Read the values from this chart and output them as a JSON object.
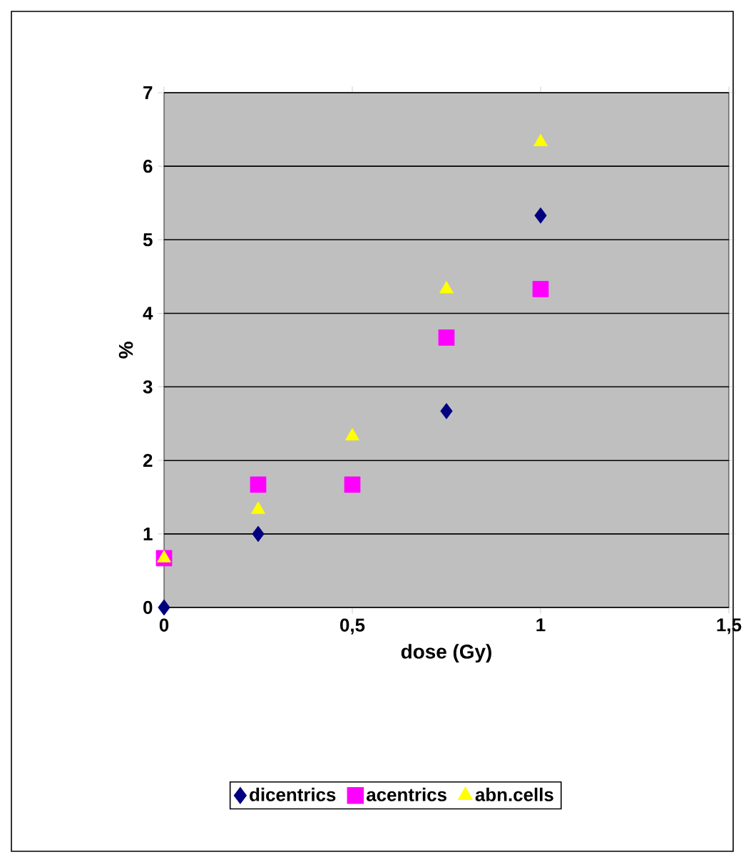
{
  "chart_data": {
    "type": "scatter",
    "xlabel": "dose (Gy)",
    "ylabel": "%",
    "xlim": [
      0,
      1.5
    ],
    "ylim": [
      0,
      7
    ],
    "xticks": [
      0,
      {
        "value": 0.5,
        "label": "0,5"
      },
      1,
      {
        "value": 1.5,
        "label": "1,5"
      }
    ],
    "yticks": [
      0,
      1,
      2,
      3,
      4,
      5,
      6,
      7
    ],
    "grid": "y",
    "legend": "bottom",
    "series": [
      {
        "name": "dicentrics",
        "color": "#000080",
        "marker": "diamond",
        "x": [
          0,
          0.25,
          0.75,
          1
        ],
        "values": [
          0,
          1,
          2.67,
          5.33
        ]
      },
      {
        "name": "acentrics",
        "color": "#ff00ff",
        "marker": "square",
        "x": [
          0,
          0.25,
          0.5,
          0.75,
          1
        ],
        "values": [
          0.67,
          1.67,
          1.67,
          3.67,
          4.33
        ]
      },
      {
        "name": "abn.cells",
        "color": "#ffff00",
        "marker": "triangle",
        "x": [
          0,
          0.25,
          0.5,
          0.75,
          1
        ],
        "values": [
          0.67,
          1.33,
          2.33,
          4.33,
          6.33
        ]
      }
    ]
  }
}
